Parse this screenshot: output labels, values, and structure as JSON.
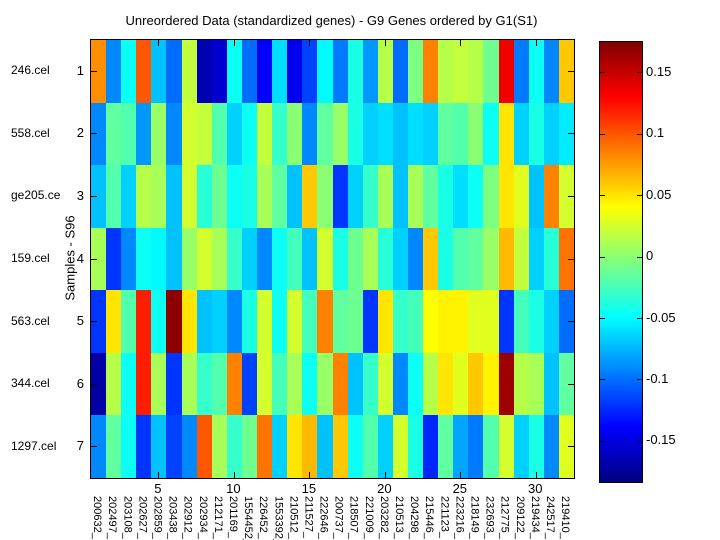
{
  "chart_data": {
    "type": "heatmap",
    "colormap": "jet",
    "title": "Unreordered Data (standardized genes) - G9 Genes ordered by G1(S1)",
    "ylabel": "Samples - S96",
    "sample_file_labels": [
      "246.cel",
      "558.cel",
      "ge205.ce",
      "159.cel",
      "563.cel",
      "344.cel",
      "1297.cel"
    ],
    "row_tick_labels": [
      "1",
      "2",
      "3",
      "4",
      "5",
      "6",
      "7"
    ],
    "x_tick_labels": [
      "5",
      "10",
      "15",
      "20",
      "25",
      "30"
    ],
    "x_tick_columns": [
      5,
      10,
      15,
      20,
      25,
      30
    ],
    "gene_labels": [
      "200632_",
      "202497_",
      "203108_",
      "202627_",
      "202859_",
      "203438_",
      "202912_",
      "202934_",
      "212171_",
      "201169_",
      "1554452_",
      "226452_",
      "1553392_",
      "210512_",
      "211527_",
      "222646_",
      "200737_",
      "218507_",
      "221009_",
      "203282_",
      "210513_",
      "204298_",
      "215446_",
      "221123_",
      "223216_",
      "218149_",
      "232693_",
      "212775_",
      "209122_",
      "219434_",
      "242517_",
      "219410_"
    ],
    "color_axis": {
      "vmin": -0.183,
      "vmax": 0.175
    },
    "colorbar_tick_labels": [
      "0.15",
      "0.1",
      "0.05",
      "0",
      "-0.05",
      "-0.1",
      "-0.15"
    ],
    "colorbar_tick_values": [
      0.15,
      0.1,
      0.05,
      0,
      -0.05,
      -0.1,
      -0.15
    ],
    "values": [
      [
        0.08,
        -0.09,
        -0.045,
        0.1,
        -0.07,
        -0.1,
        0.02,
        -0.165,
        -0.155,
        -0.045,
        -0.1,
        -0.14,
        -0.06,
        -0.145,
        -0.115,
        -0.05,
        -0.095,
        -0.04,
        -0.085,
        0.015,
        -0.1,
        -0.005,
        0.085,
        0.015,
        0.02,
        0.015,
        -0.01,
        0.135,
        -0.095,
        -0.045,
        -0.09,
        0.06
      ],
      [
        -0.09,
        -0.015,
        -0.02,
        -0.085,
        0.005,
        -0.09,
        0.025,
        0.02,
        -0.02,
        -0.065,
        -0.045,
        0.02,
        -0.03,
        0,
        -0.09,
        -0.015,
        0.005,
        -0.04,
        -0.065,
        -0.06,
        -0.07,
        -0.06,
        -0.065,
        -0.015,
        -0.02,
        0,
        -0.045,
        0.05,
        -0.065,
        -0.04,
        -0.065,
        -0.055
      ],
      [
        -0.07,
        -0.02,
        -0.065,
        0.015,
        0.01,
        -0.07,
        0.025,
        -0.035,
        -0.01,
        -0.045,
        -0.04,
        0.01,
        -0.015,
        -0.07,
        0.06,
        0,
        -0.12,
        -0.065,
        -0.03,
        0.01,
        -0.07,
        0.01,
        -0.015,
        -0.04,
        -0.06,
        -0.045,
        -0.005,
        0.05,
        0.03,
        -0.07,
        0.085,
        0.025
      ],
      [
        0.01,
        -0.12,
        -0.09,
        -0.045,
        -0.05,
        -0.07,
        0.005,
        0.025,
        0.01,
        -0.03,
        -0.065,
        -0.09,
        -0.045,
        -0.025,
        -0.07,
        0.025,
        -0.04,
        -0.01,
        0.01,
        -0.035,
        -0.065,
        -0.09,
        0.06,
        -0.04,
        -0.02,
        -0.015,
        0.005,
        0.065,
        0.02,
        -0.065,
        -0.035,
        0.09
      ],
      [
        -0.12,
        0.05,
        -0.02,
        0.12,
        -0.045,
        0.17,
        0.05,
        -0.07,
        -0.065,
        -0.09,
        -0.04,
        0.025,
        -0.045,
        0.025,
        -0.025,
        0.085,
        -0.015,
        -0.01,
        -0.12,
        0.05,
        -0.03,
        -0.025,
        0.04,
        0.045,
        0.045,
        0.03,
        0.03,
        -0.12,
        -0.025,
        -0.04,
        -0.065,
        -0.1
      ],
      [
        -0.17,
        0.015,
        -0.045,
        0.12,
        0.01,
        -0.12,
        0.01,
        -0.03,
        -0.02,
        0.085,
        -0.115,
        0.025,
        -0.025,
        0.01,
        -0.045,
        0.005,
        0.085,
        -0.07,
        -0.03,
        0.025,
        -0.09,
        -0.045,
        0.015,
        0.05,
        0.03,
        0.06,
        0.045,
        0.165,
        0.015,
        0.01,
        -0.07,
        -0.015
      ],
      [
        -0.09,
        -0.015,
        -0.045,
        -0.12,
        -0.07,
        -0.115,
        -0.09,
        0.1,
        0.01,
        -0.03,
        -0.01,
        0.09,
        -0.065,
        0.05,
        0.065,
        -0.07,
        0.06,
        -0.045,
        -0.02,
        -0.065,
        0.025,
        -0.04,
        -0.125,
        -0.015,
        -0.08,
        -0.095,
        -0.02,
        0.025,
        -0.065,
        -0.04,
        -0.09,
        0.03
      ]
    ]
  }
}
